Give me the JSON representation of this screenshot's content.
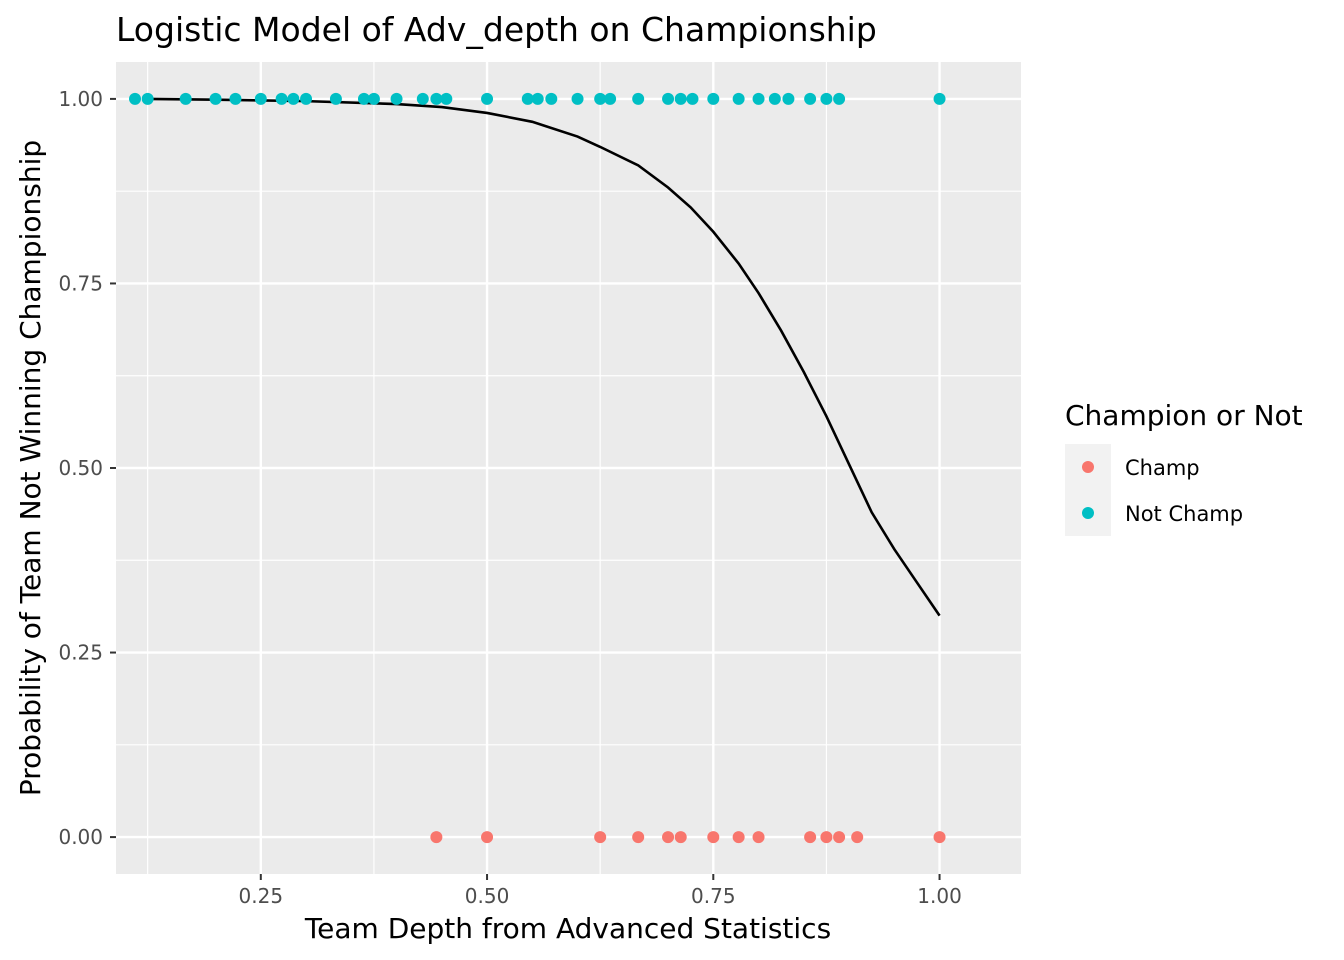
{
  "chart_data": {
    "type": "scatter",
    "title": "Logistic Model of Adv_depth on Championship",
    "xlabel": "Team Depth from Advanced Statistics",
    "ylabel": "Probability of Team Not Winning Championship",
    "xlim": [
      0.09,
      1.09
    ],
    "ylim": [
      -0.05,
      1.05
    ],
    "x_ticks": [
      0.25,
      0.5,
      0.75,
      1.0
    ],
    "x_tick_labels": [
      "0.25",
      "0.50",
      "0.75",
      "1.00"
    ],
    "y_ticks": [
      0.0,
      0.25,
      0.5,
      0.75,
      1.0
    ],
    "y_tick_labels": [
      "0.00",
      "0.25",
      "0.50",
      "0.75",
      "1.00"
    ],
    "grid": true,
    "background": "#ebebeb",
    "legend": {
      "title": "Champion or Not",
      "position": "right",
      "entries": [
        {
          "label": "Champ",
          "color": "#f8766d"
        },
        {
          "label": "Not Champ",
          "color": "#00bfc4"
        }
      ]
    },
    "series": [
      {
        "name": "Champ",
        "color": "#f8766d",
        "points": [
          [
            0.444,
            0
          ],
          [
            0.5,
            0
          ],
          [
            0.625,
            0
          ],
          [
            0.667,
            0
          ],
          [
            0.7,
            0
          ],
          [
            0.714,
            0
          ],
          [
            0.75,
            0
          ],
          [
            0.778,
            0
          ],
          [
            0.8,
            0
          ],
          [
            0.857,
            0
          ],
          [
            0.875,
            0
          ],
          [
            0.889,
            0
          ],
          [
            0.909,
            0
          ],
          [
            1.0,
            0
          ]
        ]
      },
      {
        "name": "Not Champ",
        "color": "#00bfc4",
        "points": [
          [
            0.111,
            1
          ],
          [
            0.125,
            1
          ],
          [
            0.167,
            1
          ],
          [
            0.2,
            1
          ],
          [
            0.222,
            1
          ],
          [
            0.25,
            1
          ],
          [
            0.273,
            1
          ],
          [
            0.286,
            1
          ],
          [
            0.3,
            1
          ],
          [
            0.333,
            1
          ],
          [
            0.364,
            1
          ],
          [
            0.375,
            1
          ],
          [
            0.4,
            1
          ],
          [
            0.429,
            1
          ],
          [
            0.444,
            1
          ],
          [
            0.455,
            1
          ],
          [
            0.5,
            1
          ],
          [
            0.545,
            1
          ],
          [
            0.556,
            1
          ],
          [
            0.571,
            1
          ],
          [
            0.6,
            1
          ],
          [
            0.625,
            1
          ],
          [
            0.636,
            1
          ],
          [
            0.667,
            1
          ],
          [
            0.7,
            1
          ],
          [
            0.714,
            1
          ],
          [
            0.727,
            1
          ],
          [
            0.75,
            1
          ],
          [
            0.778,
            1
          ],
          [
            0.8,
            1
          ],
          [
            0.818,
            1
          ],
          [
            0.833,
            1
          ],
          [
            0.857,
            1
          ],
          [
            0.875,
            1
          ],
          [
            0.889,
            1
          ],
          [
            1.0,
            1
          ]
        ]
      },
      {
        "name": "",
        "kind": "line",
        "color": "#000000",
        "points": [
          [
            0.125,
            1.0
          ],
          [
            0.2,
            0.999
          ],
          [
            0.3,
            0.997
          ],
          [
            0.4,
            0.993
          ],
          [
            0.45,
            0.989
          ],
          [
            0.5,
            0.981
          ],
          [
            0.55,
            0.969
          ],
          [
            0.6,
            0.949
          ],
          [
            0.625,
            0.935
          ],
          [
            0.667,
            0.91
          ],
          [
            0.7,
            0.88
          ],
          [
            0.725,
            0.853
          ],
          [
            0.75,
            0.82
          ],
          [
            0.778,
            0.777
          ],
          [
            0.8,
            0.737
          ],
          [
            0.825,
            0.686
          ],
          [
            0.85,
            0.63
          ],
          [
            0.875,
            0.57
          ],
          [
            0.9,
            0.505
          ],
          [
            0.925,
            0.44
          ],
          [
            0.95,
            0.39
          ],
          [
            0.975,
            0.345
          ],
          [
            1.0,
            0.3
          ]
        ]
      }
    ]
  }
}
